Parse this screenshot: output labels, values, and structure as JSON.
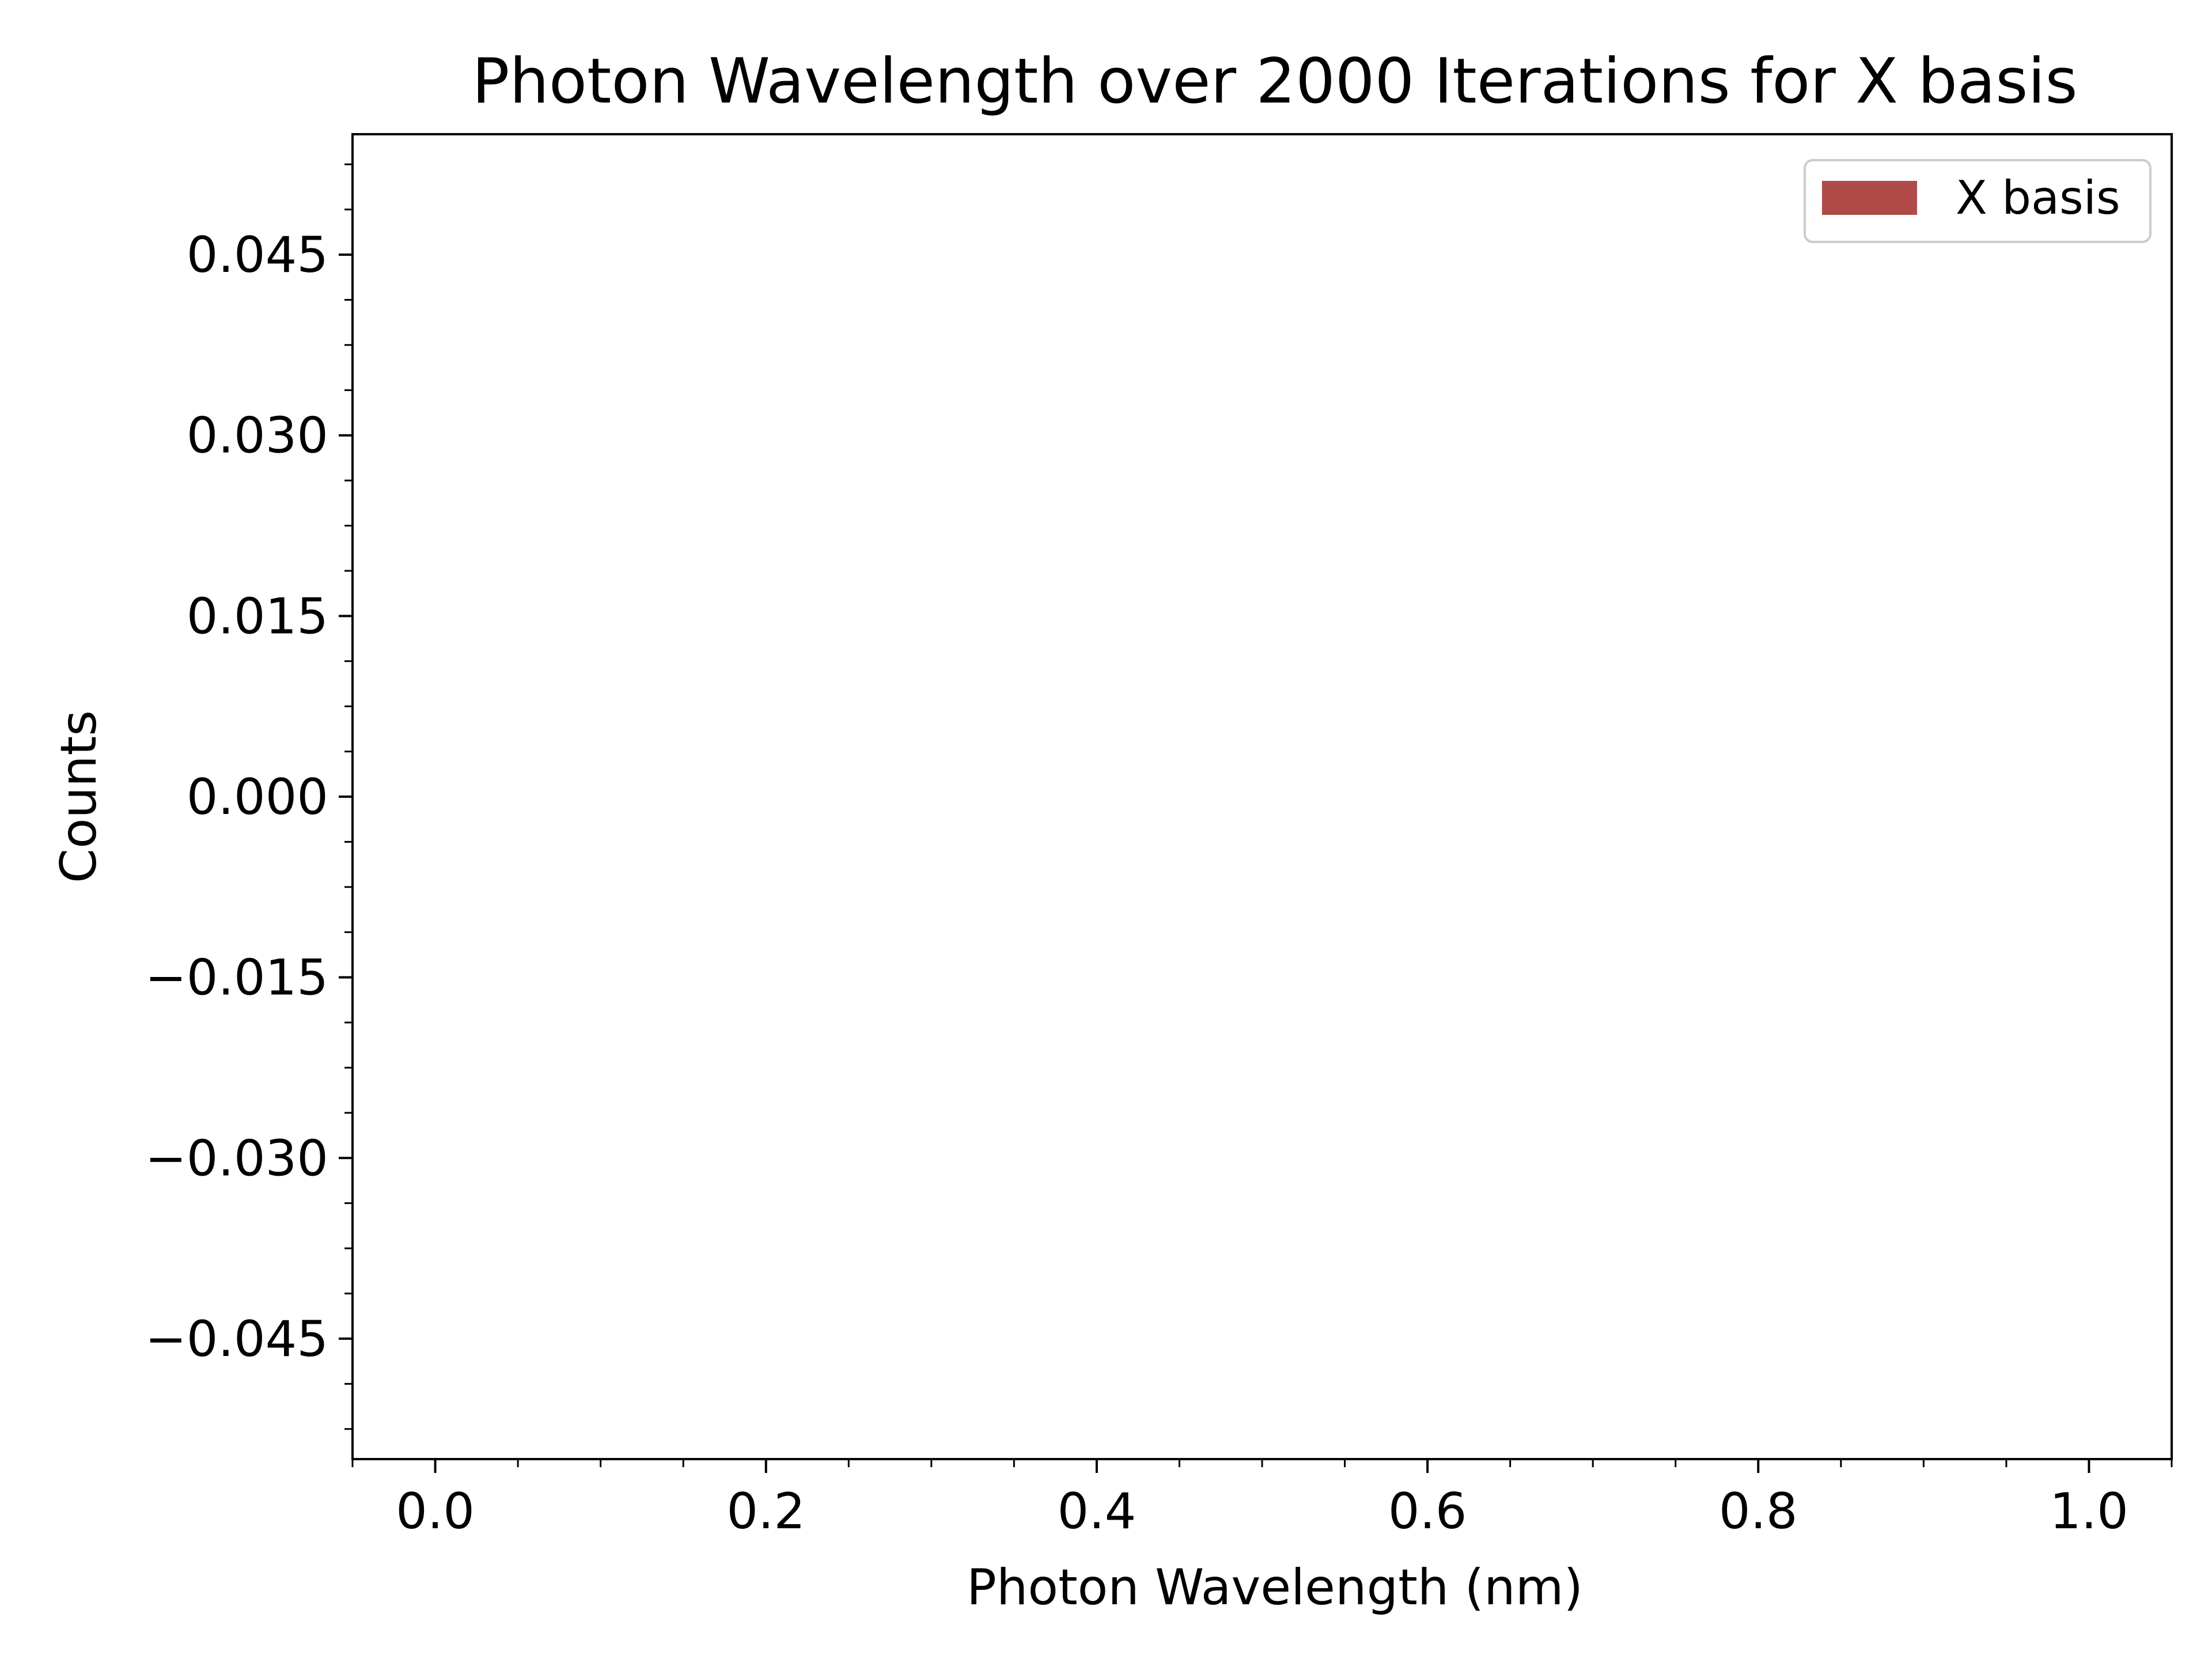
{
  "chart_data": {
    "type": "bar",
    "title": "Photon Wavelength over 2000 Iterations for X basis",
    "xlabel": "Photon Wavelength (nm)",
    "ylabel": "Counts",
    "xlim": [
      -0.05,
      1.05
    ],
    "ylim": [
      -0.055,
      0.055
    ],
    "x_ticks": [
      0.0,
      0.2,
      0.4,
      0.6,
      0.8,
      1.0
    ],
    "x_tick_labels": [
      "0.0",
      "0.2",
      "0.4",
      "0.6",
      "0.8",
      "1.0"
    ],
    "x_minor_step": 0.05,
    "y_ticks": [
      -0.045,
      -0.03,
      -0.015,
      0.0,
      0.015,
      0.03,
      0.045
    ],
    "y_tick_labels": [
      "−0.045",
      "−0.030",
      "−0.015",
      "0.000",
      "0.015",
      "0.030",
      "0.045"
    ],
    "y_minor_step": 0.00375,
    "grid": false,
    "legend_position": "top-right",
    "series": [
      {
        "name": "X basis",
        "color": "#b04a48",
        "x": [],
        "values": []
      }
    ]
  }
}
